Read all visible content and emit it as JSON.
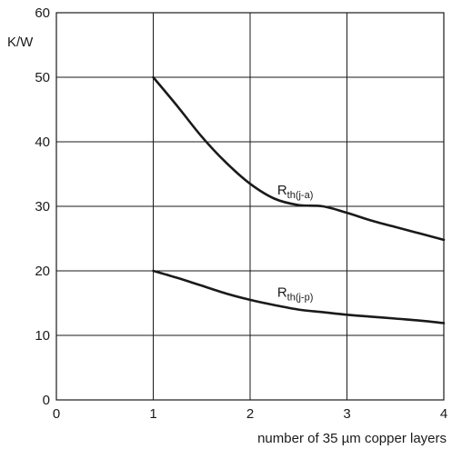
{
  "chart_data": {
    "type": "line",
    "xlabel": "number of 35 µm copper layers",
    "ylabel": "K/W",
    "xlim": [
      0,
      4
    ],
    "ylim": [
      0,
      60
    ],
    "xticks": [
      0,
      1,
      2,
      3,
      4
    ],
    "yticks": [
      0,
      10,
      20,
      30,
      40,
      50,
      60
    ],
    "grid": true,
    "series": [
      {
        "name": "R",
        "subscript": "th(j-a)",
        "x": [
          1.0,
          1.25,
          1.5,
          1.75,
          2.0,
          2.25,
          2.5,
          2.75,
          3.0,
          3.25,
          3.5,
          3.75,
          4.0
        ],
        "y": [
          50.0,
          45.5,
          40.8,
          36.8,
          33.5,
          31.2,
          30.2,
          30.0,
          29.0,
          27.8,
          26.8,
          25.8,
          24.8
        ]
      },
      {
        "name": "R",
        "subscript": "th(j-p)",
        "x": [
          1.0,
          1.25,
          1.5,
          1.75,
          2.0,
          2.25,
          2.5,
          2.75,
          3.0,
          3.25,
          3.5,
          3.75,
          4.0
        ],
        "y": [
          20.0,
          18.9,
          17.7,
          16.5,
          15.5,
          14.7,
          14.0,
          13.6,
          13.2,
          12.9,
          12.6,
          12.3,
          11.9
        ]
      }
    ]
  }
}
